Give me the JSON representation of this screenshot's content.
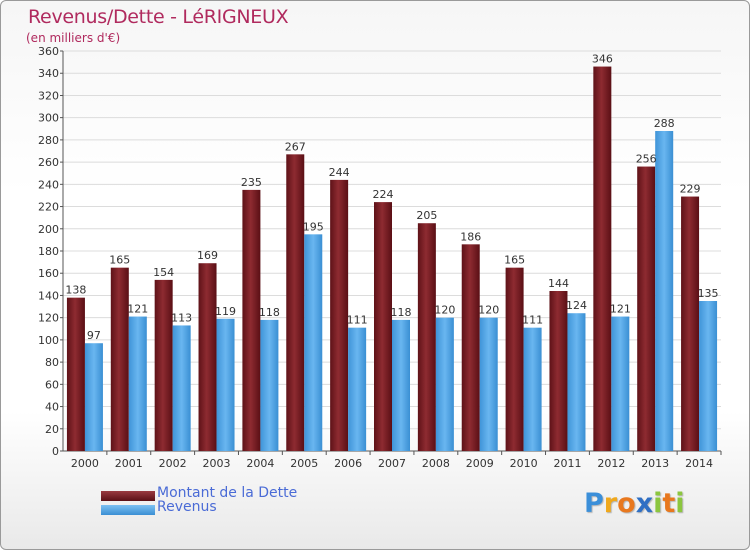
{
  "header": {
    "title": "Revenus/Dette - LéRIGNEUX",
    "subtitle": "(en milliers d'€)"
  },
  "legend": {
    "dette_label": "Montant de la Dette",
    "revenus_label": "Revenus"
  },
  "logo": {
    "text": "Proxiti",
    "letters": [
      "P",
      "r",
      "o",
      "x",
      "i",
      "t",
      "i"
    ],
    "colors": [
      "#3b8fd9",
      "#f0a81c",
      "#e8781e",
      "#2f6fc4",
      "#8cc63f",
      "#e8781e",
      "#8cc63f"
    ]
  },
  "colors": {
    "dette": "#7a1d24",
    "dette_light": "#9a3a40",
    "revenus": "#4aa3e8",
    "revenus_light": "#7cc0f2",
    "accent": "#b02a5e"
  },
  "chart_data": {
    "type": "bar",
    "title": "Revenus/Dette - LéRIGNEUX",
    "ylabel": "(en milliers d'€)",
    "xlabel": "",
    "ylim": [
      0,
      360
    ],
    "yticks": [
      0,
      20,
      40,
      60,
      80,
      100,
      120,
      140,
      160,
      180,
      200,
      220,
      240,
      260,
      280,
      300,
      320,
      340,
      360
    ],
    "grid": true,
    "legend_position": "bottom-left",
    "categories": [
      "2000",
      "2001",
      "2002",
      "2003",
      "2004",
      "2005",
      "2006",
      "2007",
      "2008",
      "2009",
      "2010",
      "2011",
      "2012",
      "2013",
      "2014"
    ],
    "series": [
      {
        "name": "Montant de la Dette",
        "values": [
          138,
          165,
          154,
          169,
          235,
          267,
          244,
          224,
          205,
          186,
          165,
          144,
          346,
          256,
          229
        ]
      },
      {
        "name": "Revenus",
        "values": [
          97,
          121,
          113,
          119,
          118,
          195,
          111,
          118,
          120,
          120,
          111,
          124,
          121,
          288,
          135
        ]
      }
    ]
  }
}
